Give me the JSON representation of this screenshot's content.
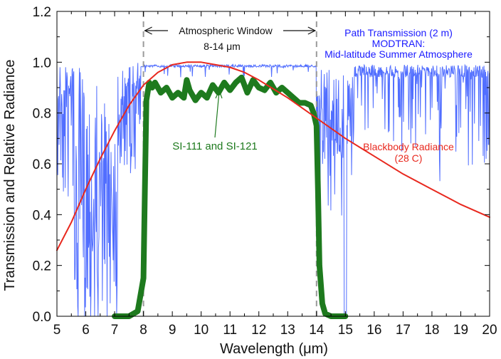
{
  "chart_data": {
    "type": "line",
    "xlabel": "Wavelength (μm)",
    "ylabel": "Transmission and Relative Radiance",
    "xlim": [
      5,
      20
    ],
    "ylim": [
      0,
      1.2
    ],
    "x_ticks": [
      "5",
      "6",
      "7",
      "8",
      "9",
      "10",
      "11",
      "12",
      "13",
      "14",
      "15",
      "16",
      "17",
      "18",
      "19",
      "20"
    ],
    "y_ticks": [
      "0.0",
      "0.2",
      "0.4",
      "0.6",
      "0.8",
      "1.0",
      "1.2"
    ],
    "grid": false,
    "annotations": {
      "window_label": "Atmospheric Window",
      "window_range": "8-14 μm",
      "transmission_label_1": "Path Transmission (2 m)",
      "transmission_label_2": "MODTRAN:",
      "transmission_label_3": "Mid-latitude Summer Atmosphere",
      "sensor_label": "SI-111 and SI-121",
      "blackbody_label_1": "Blackbody Radiance",
      "blackbody_label_2": "(28 C)"
    },
    "window_bounds": [
      8,
      14
    ],
    "colors": {
      "transmission": "#3355ff",
      "blackbody": "#e8281e",
      "sensor": "#1e7a1e",
      "window_lines": "#9a9a9a",
      "transmission_text": "#1a1aff",
      "blackbody_text": "#e8281e",
      "sensor_text": "#1e7a1e"
    },
    "series": [
      {
        "id": "sensor",
        "x": [
          7.0,
          7.5,
          7.8,
          8.0,
          8.05,
          8.1,
          8.2,
          8.3,
          8.4,
          8.6,
          8.8,
          9.0,
          9.2,
          9.4,
          9.5,
          9.6,
          9.8,
          10.0,
          10.2,
          10.4,
          10.6,
          10.8,
          11.0,
          11.2,
          11.4,
          11.6,
          11.8,
          12.0,
          12.2,
          12.4,
          12.6,
          12.8,
          13.0,
          13.2,
          13.4,
          13.6,
          13.8,
          13.9,
          14.0,
          14.05,
          14.1,
          14.2,
          14.3,
          14.5,
          14.7,
          14.9,
          15.0
        ],
        "y": [
          0.0,
          0.0,
          0.02,
          0.15,
          0.5,
          0.85,
          0.92,
          0.9,
          0.92,
          0.88,
          0.9,
          0.86,
          0.88,
          0.86,
          0.93,
          0.89,
          0.85,
          0.88,
          0.86,
          0.91,
          0.88,
          0.92,
          0.89,
          0.92,
          0.94,
          0.88,
          0.93,
          0.9,
          0.89,
          0.92,
          0.88,
          0.9,
          0.88,
          0.86,
          0.84,
          0.84,
          0.83,
          0.8,
          0.75,
          0.5,
          0.2,
          0.05,
          0.01,
          0.0,
          0.0,
          0.0,
          0.0
        ]
      },
      {
        "id": "blackbody",
        "x": [
          5.0,
          5.5,
          6.0,
          6.5,
          7.0,
          7.5,
          8.0,
          8.5,
          9.0,
          9.5,
          9.8,
          10.0,
          10.5,
          11.0,
          11.5,
          12.0,
          13.0,
          14.0,
          15.0,
          16.0,
          17.0,
          18.0,
          19.0,
          20.0
        ],
        "y": [
          0.26,
          0.37,
          0.5,
          0.62,
          0.73,
          0.83,
          0.91,
          0.96,
          0.99,
          1.0,
          1.0,
          1.0,
          0.99,
          0.98,
          0.96,
          0.93,
          0.86,
          0.78,
          0.7,
          0.63,
          0.56,
          0.5,
          0.44,
          0.39
        ]
      }
    ]
  }
}
